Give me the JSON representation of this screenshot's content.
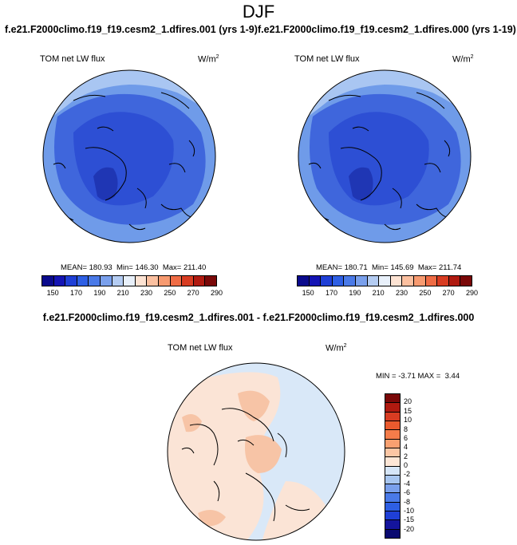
{
  "title": "DJF",
  "panel_left": {
    "caption": "f.e21.F2000climo.f19_f19.cesm2_1.dfires.001 (yrs 1-9)",
    "variable": "TOM net LW flux",
    "units_base": "W/m",
    "units_exp": "2",
    "mean_label": "MEAN=",
    "mean": "180.93",
    "min_label": "Min=",
    "min": "146.30",
    "max_label": "Max=",
    "max": "211.40"
  },
  "panel_right": {
    "caption": "f.e21.F2000climo.f19_f19.cesm2_1.dfires.000 (yrs 1-19)",
    "variable": "TOM net LW flux",
    "units_base": "W/m",
    "units_exp": "2",
    "mean_label": "MEAN=",
    "mean": "180.71",
    "min_label": "Min=",
    "min": "145.69",
    "max_label": "Max=",
    "max": "211.74"
  },
  "abs_colorbar": {
    "colors": [
      "#0a0a8c",
      "#1414b4",
      "#1f3fd6",
      "#2e5fe4",
      "#4a7ae8",
      "#7aa0ec",
      "#b4ccf2",
      "#e8f0fa",
      "#fde3d3",
      "#fbc0a0",
      "#f79a70",
      "#ef6c45",
      "#d83c22",
      "#b01a10",
      "#7a0808"
    ],
    "ticks": [
      "150",
      "170",
      "190",
      "210",
      "230",
      "250",
      "270",
      "290"
    ]
  },
  "diff_panel": {
    "caption": "f.e21.F2000climo.f19_f19.cesm2_1.dfires.001 - f.e21.F2000climo.f19_f19.cesm2_1.dfires.000",
    "variable": "TOM net LW flux",
    "units_base": "W/m",
    "units_exp": "2",
    "min_label": "MIN =",
    "min": "-3.71",
    "max_label": "MAX =",
    "max": "3.44"
  },
  "diff_colorbar": {
    "colors": [
      "#7a0808",
      "#b01a10",
      "#d83c22",
      "#ea5a2e",
      "#f47c4a",
      "#f8a070",
      "#fcc6a4",
      "#fde6d6",
      "#d6e6f8",
      "#a8c6f0",
      "#7aa0ec",
      "#4a7ae8",
      "#2e5fe4",
      "#1f3fd6",
      "#14149c",
      "#0a0a70"
    ],
    "ticks": [
      "20",
      "15",
      "10",
      "8",
      "6",
      "4",
      "2",
      "0",
      "-2",
      "-4",
      "-6",
      "-8",
      "-10",
      "-15",
      "-20"
    ]
  },
  "colors": {
    "abs_ocean_outer": "#6f9be9",
    "abs_mid": "#3f66dc",
    "abs_inner": "#2d4fd4",
    "abs_core": "#1f36b4",
    "abs_edge": "#a9c6f2",
    "diff_base": "#fbe4d6",
    "diff_blue": "#d9e8f8",
    "diff_warm": "#f7c4a6"
  }
}
